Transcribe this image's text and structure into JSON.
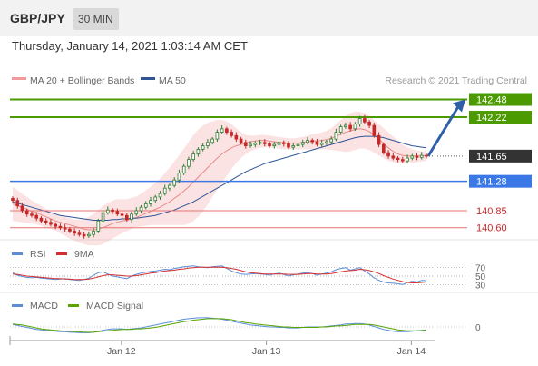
{
  "header": {
    "symbol": "GBP/JPY",
    "timeframe": "30 MIN",
    "datetime": "Thursday, January 14, 2021 1:03:14 AM CET"
  },
  "colors": {
    "price_up": "#2e7d32",
    "price_down": "#c62828",
    "bollinger": "#f49a9a",
    "ma50": "#2f5597",
    "resistance": "#4a9a00",
    "current": "#333333",
    "support": "#3a78e7",
    "target_line": "#e57373",
    "arrow": "#2e5fa8",
    "rsi": "#5b8ed8",
    "rsi_ma": "#d32f2f",
    "macd": "#5b8ed8",
    "macd_signal": "#58a500"
  },
  "chart_data": {
    "type": "line",
    "main": {
      "legend": [
        "MA 20 + Bollinger Bands",
        "MA 50"
      ],
      "credit": "Research © 2021 Trading Central",
      "ylim": [
        140.45,
        142.62
      ],
      "x_ticks": [
        {
          "label": "Jan 12",
          "index": 36
        },
        {
          "label": "Jan 13",
          "index": 84
        },
        {
          "label": "Jan 14",
          "index": 132
        }
      ],
      "levels": [
        {
          "value": 142.48,
          "label": "142.48",
          "kind": "resistance"
        },
        {
          "value": 142.22,
          "label": "142.22",
          "kind": "resistance"
        },
        {
          "value": 141.65,
          "label": "141.65",
          "kind": "current"
        },
        {
          "value": 141.28,
          "label": "141.28",
          "kind": "support"
        },
        {
          "value": 140.85,
          "label": "140.85",
          "kind": "target"
        },
        {
          "value": 140.6,
          "label": "140.60",
          "kind": "target"
        }
      ],
      "close": [
        141.0,
        140.92,
        140.85,
        140.8,
        140.78,
        140.74,
        140.7,
        140.68,
        140.65,
        140.62,
        140.6,
        140.58,
        140.55,
        140.52,
        140.5,
        140.48,
        140.5,
        140.55,
        140.7,
        140.82,
        140.86,
        140.84,
        140.8,
        140.78,
        140.72,
        140.8,
        140.85,
        140.9,
        140.95,
        141.0,
        141.05,
        141.1,
        141.18,
        141.22,
        141.3,
        141.4,
        141.5,
        141.6,
        141.68,
        141.75,
        141.8,
        141.85,
        141.9,
        142.0,
        142.05,
        142.0,
        141.95,
        141.9,
        141.85,
        141.8,
        141.82,
        141.84,
        141.85,
        141.83,
        141.8,
        141.82,
        141.85,
        141.83,
        141.78,
        141.8,
        141.82,
        141.85,
        141.88,
        141.86,
        141.82,
        141.84,
        141.86,
        141.9,
        142.0,
        142.08,
        142.1,
        142.05,
        142.12,
        142.2,
        142.15,
        142.1,
        141.95,
        141.82,
        141.7,
        141.65,
        141.62,
        141.6,
        141.58,
        141.62,
        141.65,
        141.63,
        141.66,
        141.65
      ],
      "ma20": [
        140.95,
        140.92,
        140.9,
        140.87,
        140.84,
        140.82,
        140.79,
        140.76,
        140.73,
        140.7,
        140.68,
        140.66,
        140.64,
        140.62,
        140.6,
        140.58,
        140.57,
        140.57,
        140.58,
        140.6,
        140.63,
        140.66,
        140.68,
        140.7,
        140.71,
        140.73,
        140.75,
        140.78,
        140.81,
        140.84,
        140.87,
        140.9,
        140.94,
        140.98,
        141.03,
        141.08,
        141.14,
        141.2,
        141.27,
        141.34,
        141.41,
        141.48,
        141.55,
        141.62,
        141.68,
        141.73,
        141.77,
        141.8,
        141.82,
        141.84,
        141.86,
        141.87,
        141.88,
        141.88,
        141.87,
        141.86,
        141.85,
        141.84,
        141.84,
        141.84,
        141.84,
        141.85,
        141.86,
        141.87,
        141.87,
        141.88,
        141.89,
        141.91,
        141.94,
        141.97,
        142.0,
        142.02,
        142.04,
        142.05,
        142.04,
        142.01,
        141.96,
        141.9,
        141.83,
        141.77,
        141.72,
        141.68,
        141.66,
        141.65,
        141.65,
        141.65,
        141.65,
        141.66
      ],
      "bb_upper": [
        141.2,
        141.15,
        141.1,
        141.05,
        141.0,
        140.96,
        140.92,
        140.88,
        140.84,
        140.8,
        140.78,
        140.76,
        140.74,
        140.72,
        140.72,
        140.73,
        140.76,
        140.8,
        140.86,
        140.92,
        140.96,
        141.0,
        141.02,
        141.02,
        141.02,
        141.04,
        141.06,
        141.1,
        141.15,
        141.2,
        141.26,
        141.32,
        141.4,
        141.48,
        141.57,
        141.66,
        141.76,
        141.86,
        141.96,
        142.04,
        142.1,
        142.14,
        142.16,
        142.18,
        142.18,
        142.16,
        142.12,
        142.06,
        142.0,
        141.96,
        141.95,
        141.95,
        141.96,
        141.96,
        141.95,
        141.94,
        141.93,
        141.92,
        141.91,
        141.91,
        141.92,
        141.93,
        141.95,
        141.97,
        141.98,
        142.0,
        142.02,
        142.06,
        142.12,
        142.18,
        142.24,
        142.28,
        142.3,
        142.3,
        142.28,
        142.24,
        142.18,
        142.12,
        142.06,
        142.0,
        141.94,
        141.88,
        141.82,
        141.78,
        141.75,
        141.73,
        141.72,
        141.72
      ],
      "bb_lower": [
        140.7,
        140.69,
        140.68,
        140.67,
        140.66,
        140.65,
        140.63,
        140.6,
        140.58,
        140.56,
        140.52,
        140.48,
        140.44,
        140.41,
        140.38,
        140.36,
        140.34,
        140.34,
        140.34,
        140.36,
        140.4,
        140.44,
        140.48,
        140.52,
        140.55,
        140.58,
        140.61,
        140.62,
        140.63,
        140.64,
        140.64,
        140.64,
        140.64,
        140.64,
        140.64,
        140.64,
        140.64,
        140.66,
        140.7,
        140.76,
        140.84,
        140.94,
        141.05,
        141.16,
        141.26,
        141.36,
        141.46,
        141.55,
        141.62,
        141.68,
        141.72,
        141.75,
        141.77,
        141.78,
        141.78,
        141.77,
        141.76,
        141.75,
        141.75,
        141.75,
        141.75,
        141.75,
        141.75,
        141.75,
        141.75,
        141.75,
        141.75,
        141.74,
        141.73,
        141.72,
        141.71,
        141.72,
        141.74,
        141.76,
        141.76,
        141.74,
        141.7,
        141.66,
        141.62,
        141.58,
        141.56,
        141.54,
        141.54,
        141.54,
        141.55,
        141.56,
        141.57,
        141.58
      ],
      "ma50": [
        140.98,
        140.96,
        140.94,
        140.92,
        140.9,
        140.88,
        140.86,
        140.84,
        140.82,
        140.8,
        140.78,
        140.77,
        140.76,
        140.75,
        140.74,
        140.73,
        140.72,
        140.71,
        140.71,
        140.71,
        140.71,
        140.72,
        140.72,
        140.73,
        140.73,
        140.74,
        140.74,
        140.75,
        140.76,
        140.77,
        140.78,
        140.8,
        140.82,
        140.84,
        140.86,
        140.89,
        140.92,
        140.95,
        140.98,
        141.02,
        141.06,
        141.1,
        141.14,
        141.18,
        141.22,
        141.26,
        141.3,
        141.34,
        141.38,
        141.42,
        141.45,
        141.48,
        141.51,
        141.54,
        141.56,
        141.58,
        141.6,
        141.62,
        141.64,
        141.66,
        141.68,
        141.7,
        141.72,
        141.74,
        141.76,
        141.78,
        141.8,
        141.82,
        141.84,
        141.86,
        141.88,
        141.9,
        141.92,
        141.93,
        141.94,
        141.94,
        141.94,
        141.93,
        141.92,
        141.9,
        141.88,
        141.86,
        141.84,
        141.82,
        141.8,
        141.79,
        141.78,
        141.77
      ]
    },
    "rsi": {
      "legend": [
        "RSI",
        "9MA"
      ],
      "levels": [
        70,
        50,
        30
      ],
      "ylim": [
        20,
        80
      ],
      "rsi": [
        58,
        52,
        49,
        47,
        46,
        47,
        45,
        44,
        43,
        42,
        43,
        44,
        42,
        41,
        40,
        42,
        45,
        52,
        58,
        60,
        55,
        50,
        48,
        46,
        44,
        50,
        54,
        57,
        59,
        61,
        62,
        64,
        66,
        65,
        68,
        70,
        72,
        73,
        74,
        72,
        71,
        70,
        72,
        73,
        74,
        68,
        62,
        58,
        55,
        54,
        55,
        56,
        55,
        54,
        52,
        55,
        57,
        54,
        50,
        53,
        55,
        57,
        58,
        56,
        52,
        55,
        57,
        60,
        65,
        68,
        70,
        64,
        67,
        70,
        62,
        55,
        46,
        40,
        36,
        34,
        33,
        32,
        30,
        35,
        38,
        36,
        40,
        39
      ],
      "ma9": [
        55,
        54,
        52,
        50,
        49,
        48,
        47,
        46,
        45,
        44,
        44,
        43,
        43,
        42,
        42,
        42,
        43,
        45,
        48,
        51,
        53,
        53,
        52,
        51,
        50,
        50,
        51,
        53,
        55,
        57,
        58,
        60,
        62,
        63,
        64,
        66,
        67,
        69,
        70,
        71,
        71,
        71,
        71,
        71,
        71,
        70,
        68,
        66,
        63,
        60,
        58,
        57,
        56,
        55,
        55,
        55,
        55,
        55,
        54,
        54,
        54,
        55,
        56,
        56,
        55,
        55,
        55,
        56,
        58,
        60,
        62,
        63,
        64,
        66,
        65,
        63,
        60,
        56,
        51,
        47,
        43,
        40,
        37,
        35,
        34,
        34,
        35,
        36
      ]
    },
    "macd": {
      "legend": [
        "MACD",
        "MACD Signal"
      ],
      "zero_label": "0",
      "ylim": [
        -0.3,
        0.3
      ],
      "macd": [
        0.05,
        0.03,
        0.01,
        -0.01,
        -0.03,
        -0.05,
        -0.06,
        -0.07,
        -0.08,
        -0.09,
        -0.1,
        -0.1,
        -0.11,
        -0.11,
        -0.12,
        -0.12,
        -0.12,
        -0.11,
        -0.09,
        -0.07,
        -0.05,
        -0.04,
        -0.04,
        -0.04,
        -0.05,
        -0.04,
        -0.03,
        -0.02,
        0.0,
        0.02,
        0.04,
        0.06,
        0.08,
        0.1,
        0.12,
        0.14,
        0.16,
        0.17,
        0.18,
        0.19,
        0.19,
        0.19,
        0.18,
        0.17,
        0.16,
        0.14,
        0.12,
        0.1,
        0.08,
        0.06,
        0.04,
        0.03,
        0.02,
        0.01,
        0.0,
        0.0,
        -0.01,
        -0.01,
        -0.02,
        -0.02,
        -0.02,
        -0.01,
        0.0,
        0.0,
        0.0,
        0.0,
        0.01,
        0.02,
        0.03,
        0.04,
        0.06,
        0.06,
        0.07,
        0.07,
        0.06,
        0.04,
        0.01,
        -0.02,
        -0.05,
        -0.07,
        -0.09,
        -0.1,
        -0.1,
        -0.1,
        -0.09,
        -0.08,
        -0.07,
        -0.06
      ],
      "signal": [
        0.06,
        0.05,
        0.04,
        0.02,
        0.0,
        -0.02,
        -0.04,
        -0.05,
        -0.06,
        -0.07,
        -0.08,
        -0.09,
        -0.09,
        -0.1,
        -0.1,
        -0.11,
        -0.11,
        -0.11,
        -0.1,
        -0.09,
        -0.08,
        -0.07,
        -0.06,
        -0.05,
        -0.05,
        -0.05,
        -0.04,
        -0.04,
        -0.03,
        -0.02,
        -0.01,
        0.01,
        0.03,
        0.05,
        0.07,
        0.09,
        0.11,
        0.12,
        0.14,
        0.15,
        0.16,
        0.17,
        0.17,
        0.17,
        0.17,
        0.16,
        0.15,
        0.13,
        0.11,
        0.09,
        0.08,
        0.06,
        0.05,
        0.04,
        0.03,
        0.02,
        0.01,
        0.0,
        0.0,
        -0.01,
        -0.01,
        -0.01,
        -0.01,
        -0.01,
        -0.01,
        0.0,
        0.0,
        0.01,
        0.02,
        0.02,
        0.03,
        0.04,
        0.05,
        0.05,
        0.05,
        0.05,
        0.04,
        0.02,
        0.0,
        -0.02,
        -0.04,
        -0.06,
        -0.07,
        -0.08,
        -0.08,
        -0.08,
        -0.08,
        -0.07
      ]
    }
  }
}
